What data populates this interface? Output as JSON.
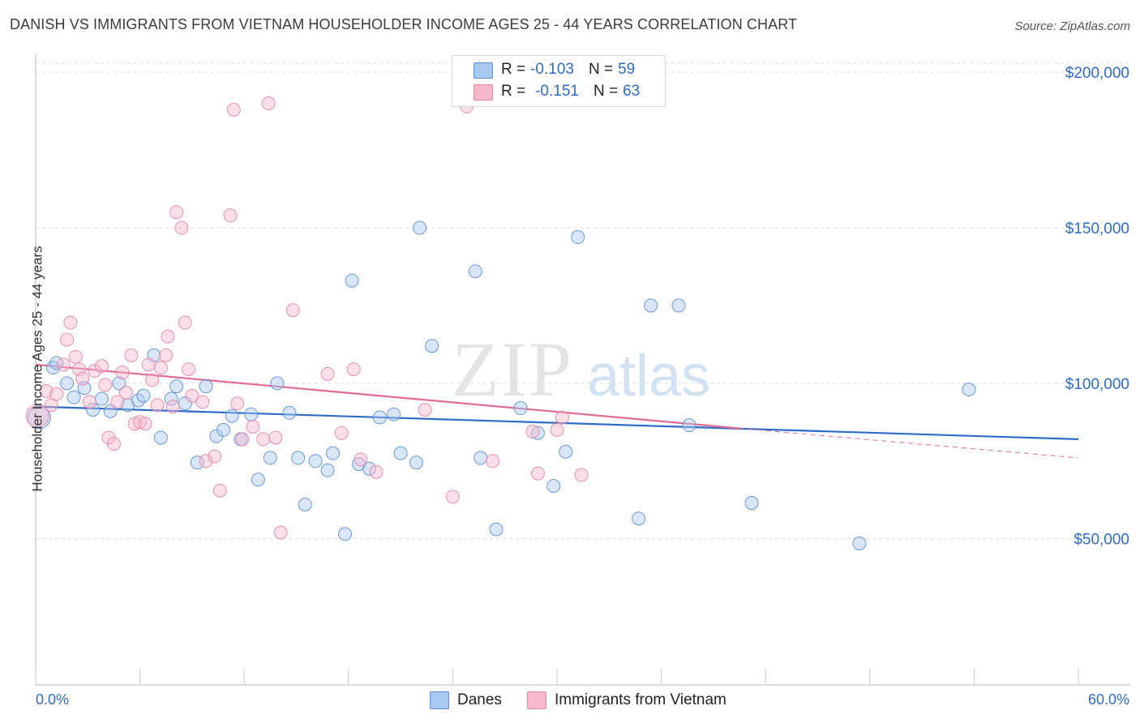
{
  "title": "DANISH VS IMMIGRANTS FROM VIETNAM HOUSEHOLDER INCOME AGES 25 - 44 YEARS CORRELATION CHART",
  "source": "Source: ZipAtlas.com",
  "watermark": {
    "zip": "ZIP",
    "atlas": "atlas"
  },
  "stats": [
    {
      "r_label": "R =",
      "r_value": "-0.103",
      "n_label": "N =",
      "n_value": "59",
      "color": "#a9c8f0",
      "stroke": "#5b8fd6"
    },
    {
      "r_label": "R =",
      "r_value": "-0.151",
      "n_label": "N =",
      "n_value": "63",
      "color": "#f7b8cc",
      "stroke": "#e686a8"
    }
  ],
  "legend": [
    {
      "label": "Danes",
      "color": "#a9c8f0",
      "stroke": "#5b8fd6"
    },
    {
      "label": "Immigrants from Vietnam",
      "color": "#f7b8cc",
      "stroke": "#e686a8"
    }
  ],
  "chart_data": {
    "type": "scatter",
    "title": "DANISH VS IMMIGRANTS FROM VIETNAM HOUSEHOLDER INCOME AGES 25 - 44 YEARS CORRELATION CHART",
    "xlabel": "",
    "ylabel": "Householder Income Ages 25 - 44 years",
    "xlim": [
      0,
      60
    ],
    "ylim": [
      3000,
      205000
    ],
    "x_tick_labels": [
      "0.0%",
      "60.0%"
    ],
    "y_ticks": [
      50000,
      100000,
      150000,
      200000
    ],
    "y_tick_labels": [
      "$50,000",
      "$100,000",
      "$150,000",
      "$200,000"
    ],
    "grid": true,
    "series": [
      {
        "name": "Danes",
        "color": "#a9c8f0",
        "stroke": "#5b8fd6",
        "trend": {
          "x0": 0,
          "y0": 92500,
          "x1": 60,
          "y1": 82000,
          "color": "#2f6cc8"
        },
        "points": [
          [
            0.2,
            89000
          ],
          [
            1.0,
            105000
          ],
          [
            1.2,
            106500
          ],
          [
            1.8,
            100000
          ],
          [
            2.2,
            95500
          ],
          [
            2.8,
            98500
          ],
          [
            3.3,
            91500
          ],
          [
            3.8,
            95000
          ],
          [
            4.3,
            91000
          ],
          [
            4.8,
            100000
          ],
          [
            5.3,
            93000
          ],
          [
            5.9,
            94500
          ],
          [
            6.2,
            96000
          ],
          [
            6.8,
            109000
          ],
          [
            7.2,
            82500
          ],
          [
            7.8,
            95000
          ],
          [
            8.1,
            99000
          ],
          [
            8.6,
            93500
          ],
          [
            9.3,
            74500
          ],
          [
            9.8,
            99000
          ],
          [
            10.4,
            83000
          ],
          [
            10.8,
            85000
          ],
          [
            11.3,
            89500
          ],
          [
            11.8,
            82000
          ],
          [
            12.4,
            90000
          ],
          [
            12.8,
            69000
          ],
          [
            13.5,
            76000
          ],
          [
            13.9,
            100000
          ],
          [
            14.6,
            90500
          ],
          [
            15.1,
            76000
          ],
          [
            15.5,
            61000
          ],
          [
            16.1,
            75000
          ],
          [
            16.8,
            72000
          ],
          [
            17.1,
            77500
          ],
          [
            17.8,
            51500
          ],
          [
            18.2,
            133000
          ],
          [
            18.6,
            74000
          ],
          [
            19.2,
            72500
          ],
          [
            19.8,
            89000
          ],
          [
            20.6,
            90000
          ],
          [
            21.0,
            77500
          ],
          [
            21.9,
            74500
          ],
          [
            22.1,
            150000
          ],
          [
            22.8,
            112000
          ],
          [
            25.3,
            136000
          ],
          [
            25.6,
            76000
          ],
          [
            26.5,
            53000
          ],
          [
            27.9,
            92000
          ],
          [
            28.9,
            84000
          ],
          [
            29.8,
            67000
          ],
          [
            30.5,
            78000
          ],
          [
            31.2,
            147000
          ],
          [
            34.7,
            56500
          ],
          [
            35.4,
            125000
          ],
          [
            37.0,
            125000
          ],
          [
            37.6,
            86500
          ],
          [
            41.2,
            61500
          ],
          [
            47.4,
            48500
          ],
          [
            53.7,
            98000
          ]
        ]
      },
      {
        "name": "Immigrants from Vietnam",
        "color": "#f7b8cc",
        "stroke": "#e686a8",
        "trend": {
          "x0": 0,
          "y0": 106000,
          "x1": 40.5,
          "y1": 85500,
          "color": "#e06b95",
          "dash_x1": 60,
          "dash_y1": 76000
        },
        "points": [
          [
            0.1,
            89500
          ],
          [
            0.6,
            97500
          ],
          [
            0.9,
            93000
          ],
          [
            1.2,
            96500
          ],
          [
            1.6,
            106000
          ],
          [
            1.8,
            114000
          ],
          [
            2.0,
            119500
          ],
          [
            2.3,
            108500
          ],
          [
            2.5,
            104500
          ],
          [
            2.7,
            101500
          ],
          [
            3.1,
            94000
          ],
          [
            3.4,
            104000
          ],
          [
            3.8,
            105500
          ],
          [
            4.0,
            99500
          ],
          [
            4.2,
            82500
          ],
          [
            4.5,
            80500
          ],
          [
            4.7,
            94000
          ],
          [
            5.0,
            103500
          ],
          [
            5.2,
            97000
          ],
          [
            5.5,
            109000
          ],
          [
            5.7,
            87000
          ],
          [
            6.0,
            87500
          ],
          [
            6.3,
            87000
          ],
          [
            6.5,
            106000
          ],
          [
            6.7,
            101000
          ],
          [
            7.0,
            93000
          ],
          [
            7.2,
            105000
          ],
          [
            7.5,
            109000
          ],
          [
            7.6,
            115000
          ],
          [
            7.9,
            92500
          ],
          [
            8.1,
            155000
          ],
          [
            8.4,
            150000
          ],
          [
            8.6,
            119500
          ],
          [
            8.8,
            104500
          ],
          [
            9.0,
            96000
          ],
          [
            9.6,
            94000
          ],
          [
            9.8,
            75000
          ],
          [
            10.3,
            76500
          ],
          [
            10.6,
            65500
          ],
          [
            11.2,
            154000
          ],
          [
            11.4,
            188000
          ],
          [
            11.6,
            93500
          ],
          [
            11.9,
            82000
          ],
          [
            12.5,
            86000
          ],
          [
            13.4,
            190000
          ],
          [
            13.8,
            82500
          ],
          [
            14.1,
            52000
          ],
          [
            14.8,
            123500
          ],
          [
            16.8,
            103000
          ],
          [
            17.6,
            84000
          ],
          [
            18.3,
            104500
          ],
          [
            18.7,
            75500
          ],
          [
            19.6,
            71500
          ],
          [
            22.4,
            91500
          ],
          [
            24.0,
            63500
          ],
          [
            24.8,
            189000
          ],
          [
            26.3,
            75000
          ],
          [
            28.6,
            84500
          ],
          [
            28.9,
            71000
          ],
          [
            30.0,
            85000
          ],
          [
            30.3,
            89000
          ],
          [
            31.4,
            70500
          ],
          [
            13.1,
            82000
          ]
        ]
      }
    ]
  }
}
